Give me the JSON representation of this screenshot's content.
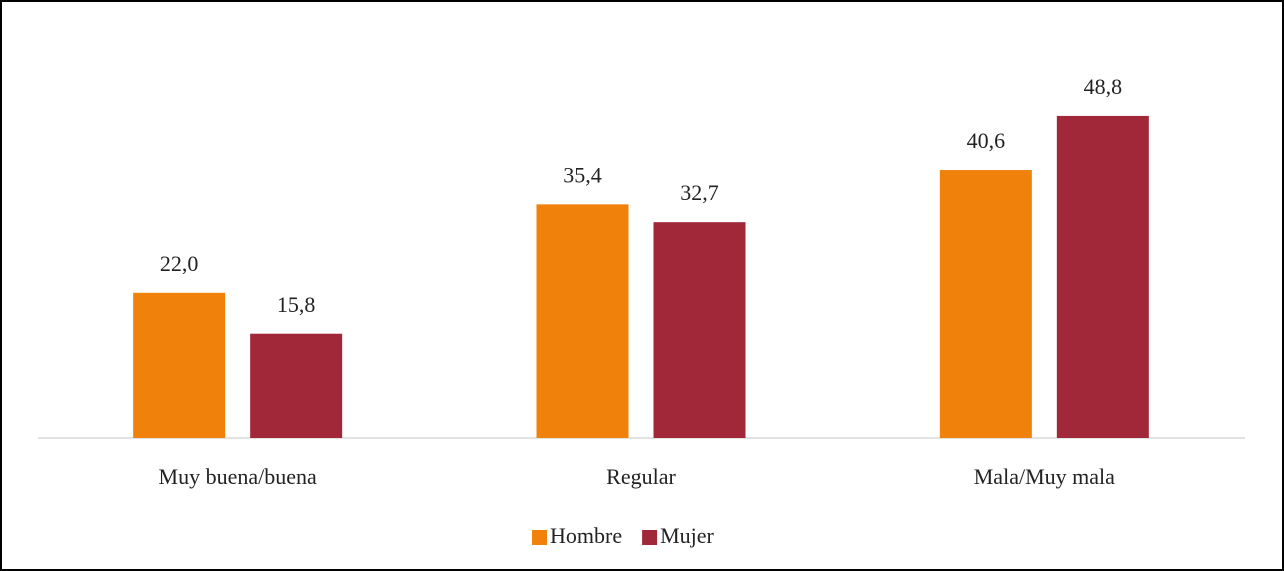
{
  "chart_data": {
    "type": "bar",
    "categories": [
      "Muy buena/buena",
      "Regular",
      "Mala/Muy mala"
    ],
    "series": [
      {
        "name": "Hombre",
        "color": "#f0820b",
        "values": [
          22.0,
          35.4,
          40.6
        ],
        "value_labels": [
          "22,0",
          "35,4",
          "40,6"
        ]
      },
      {
        "name": "Mujer",
        "color": "#a12839",
        "values": [
          15.8,
          32.7,
          48.8
        ],
        "value_labels": [
          "15,8",
          "32,7",
          "48,8"
        ]
      }
    ],
    "legend": "bottom"
  }
}
